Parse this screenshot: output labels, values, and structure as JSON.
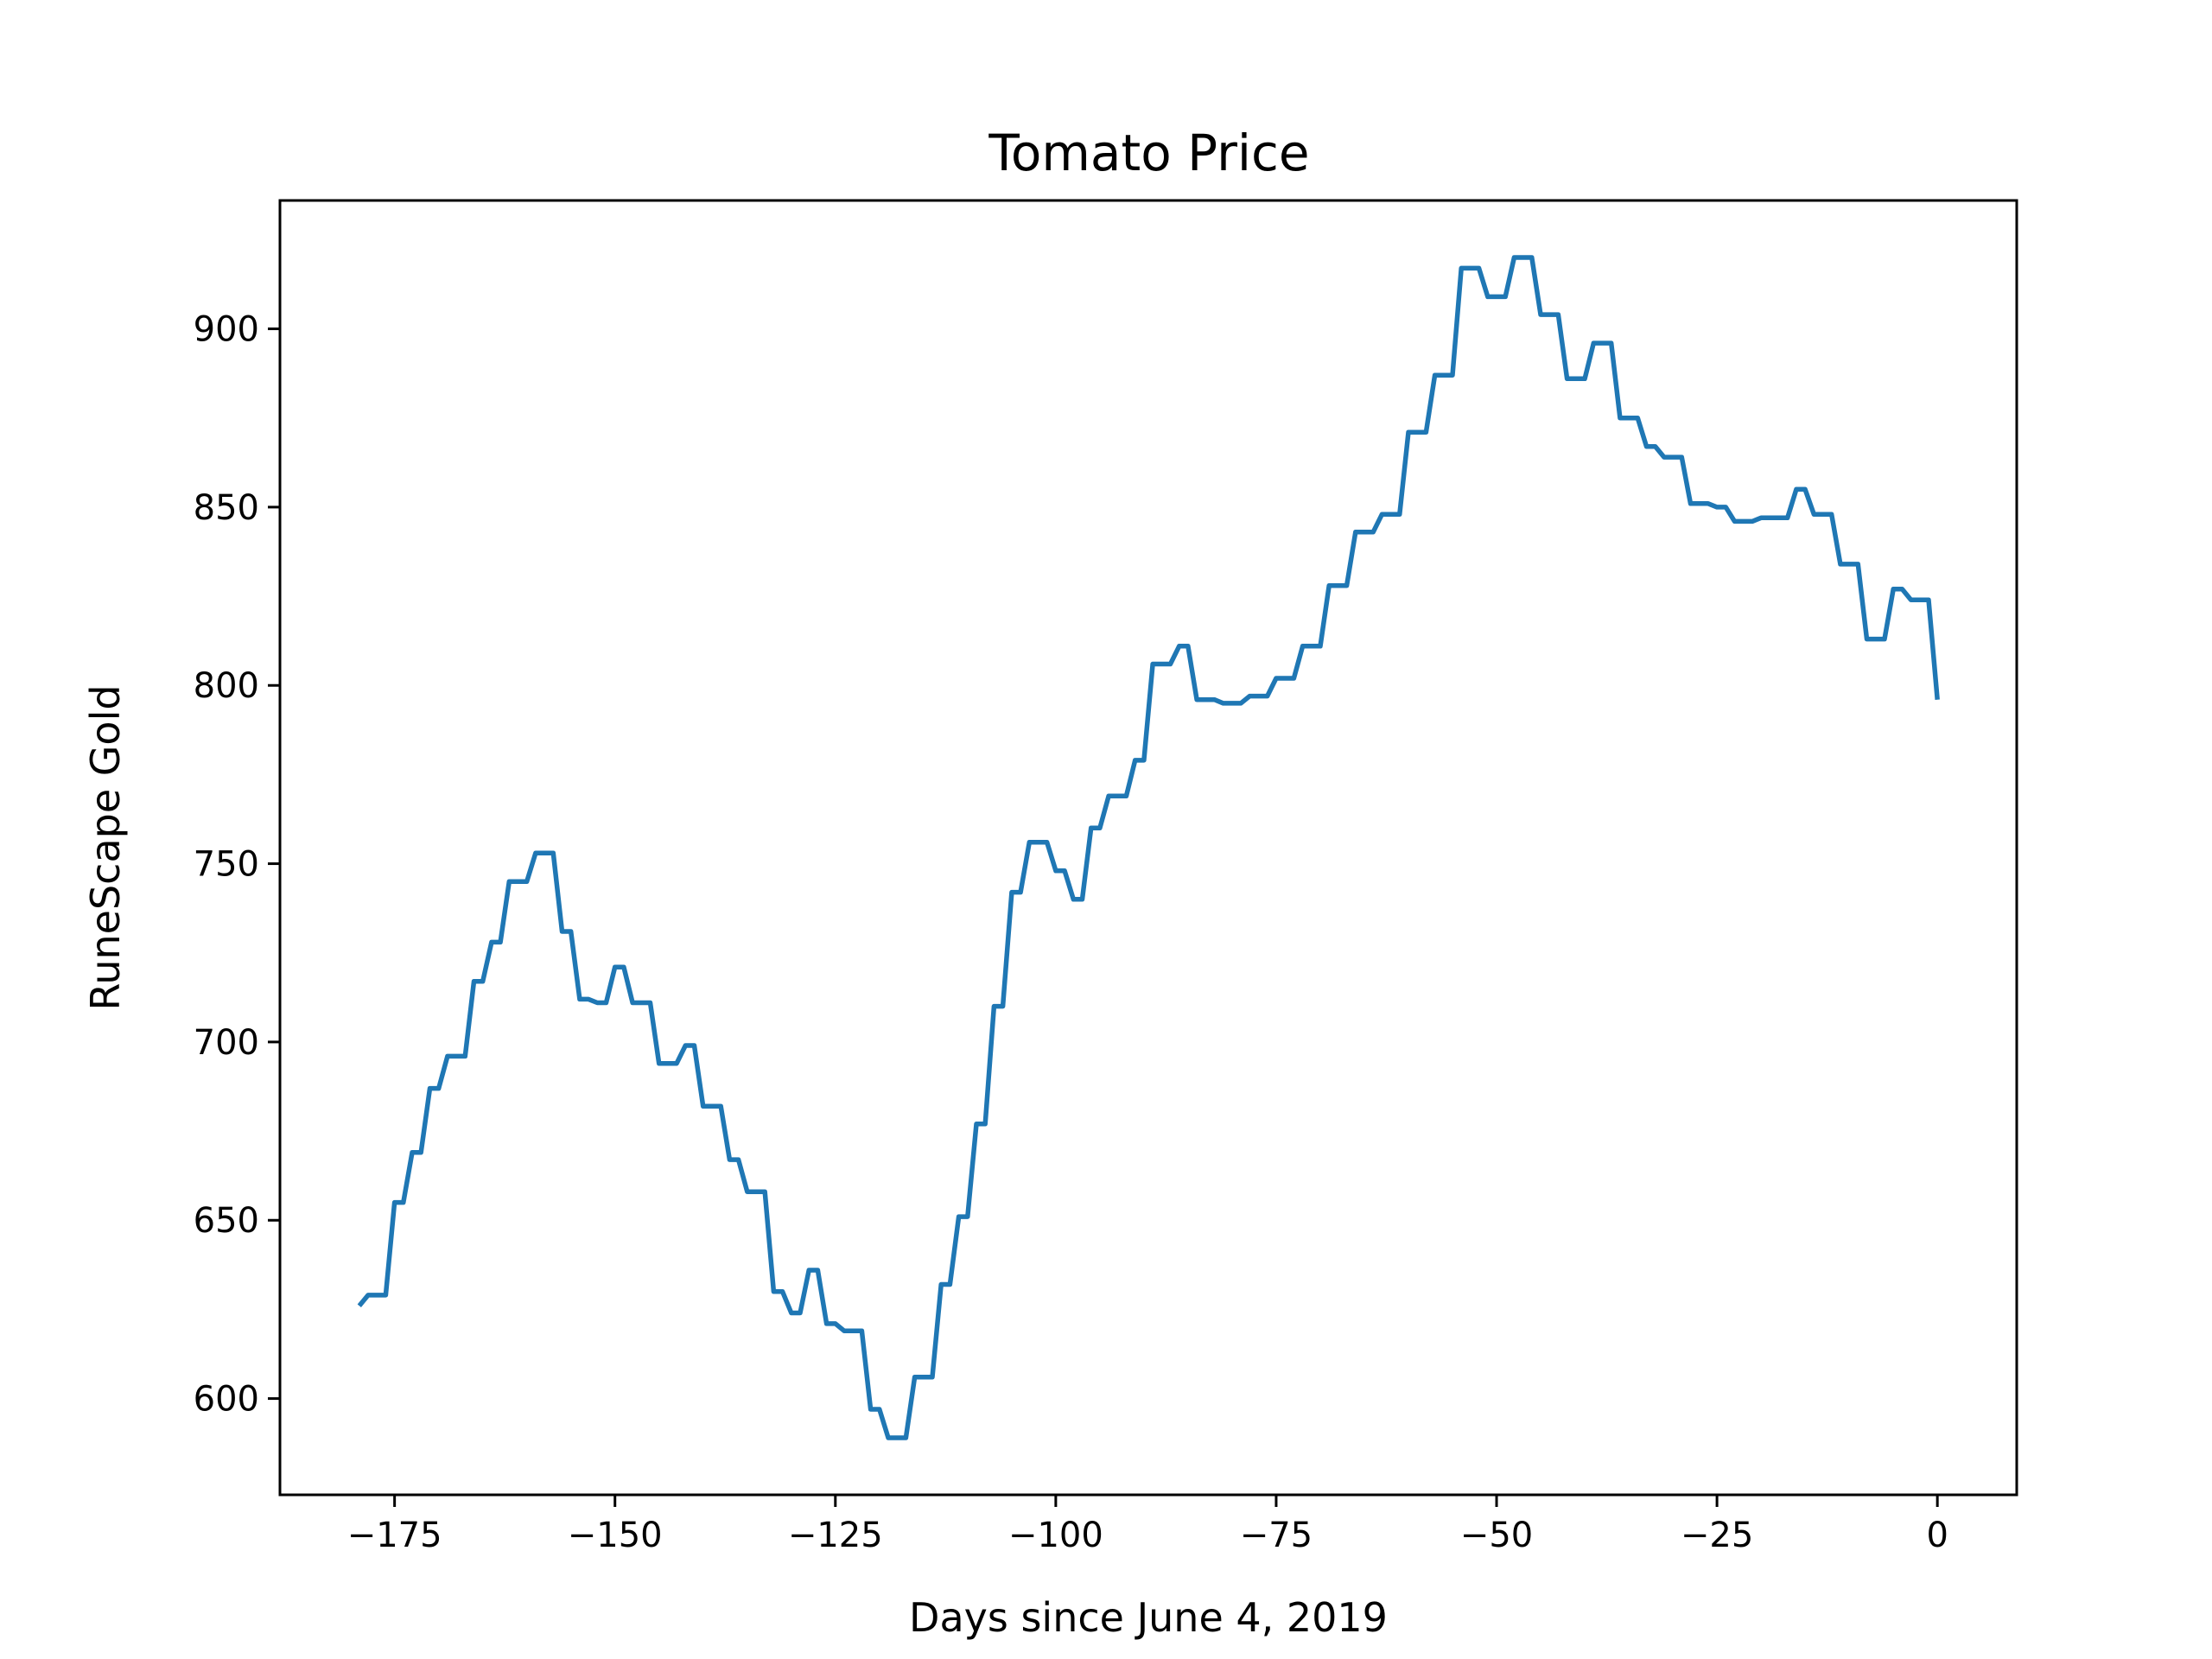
{
  "chart_data": {
    "type": "line",
    "title": "Tomato Price",
    "xlabel": "Days since June 4, 2019",
    "ylabel": "RuneScape Gold",
    "xlim": [
      -188,
      9
    ],
    "ylim": [
      573,
      936
    ],
    "x_ticks": [
      -175,
      -150,
      -125,
      -100,
      -75,
      -50,
      -25,
      0
    ],
    "x_tick_labels": [
      "−175",
      "−150",
      "−125",
      "−100",
      "−75",
      "−50",
      "−25",
      "0"
    ],
    "y_ticks": [
      600,
      650,
      700,
      750,
      800,
      850,
      900
    ],
    "y_tick_labels": [
      "600",
      "650",
      "700",
      "750",
      "800",
      "850",
      "900"
    ],
    "grid": false,
    "line_color": "#1f77b4",
    "series": [
      {
        "x": [
          -179,
          -178,
          -177,
          -176,
          -175,
          -174,
          -173,
          -172,
          -171,
          -170,
          -169,
          -168,
          -167,
          -166,
          -165,
          -164,
          -163,
          -162,
          -161,
          -160,
          -159,
          -158,
          -157,
          -156,
          -155,
          -154,
          -153,
          -152,
          -151,
          -150,
          -149,
          -148,
          -147,
          -146,
          -145,
          -144,
          -143,
          -142,
          -141,
          -140,
          -139,
          -138,
          -137,
          -136,
          -135,
          -134,
          -133,
          -132,
          -131,
          -130,
          -129,
          -128,
          -127,
          -126,
          -125,
          -124,
          -123,
          -122,
          -121,
          -120,
          -119,
          -118,
          -117,
          -116,
          -115,
          -114,
          -113,
          -112,
          -111,
          -110,
          -109,
          -108,
          -107,
          -106,
          -105,
          -104,
          -103,
          -102,
          -101,
          -100,
          -99,
          -98,
          -97,
          -96,
          -95,
          -94,
          -93,
          -92,
          -91,
          -90,
          -89,
          -88,
          -87,
          -86,
          -85,
          -84,
          -83,
          -82,
          -81,
          -80,
          -79,
          -78,
          -77,
          -76,
          -75,
          -74,
          -73,
          -72,
          -71,
          -70,
          -69,
          -68,
          -67,
          -66,
          -65,
          -64,
          -63,
          -62,
          -61,
          -60,
          -59,
          -58,
          -57,
          -56,
          -55,
          -54,
          -53,
          -52,
          -51,
          -50,
          -49,
          -48,
          -47,
          -46,
          -45,
          -44,
          -43,
          -42,
          -41,
          -40,
          -39,
          -38,
          -37,
          -36,
          -35,
          -34,
          -33,
          -32,
          -31,
          -30,
          -29,
          -28,
          -27,
          -26,
          -25,
          -24,
          -23,
          -22,
          -21,
          -20,
          -19,
          -18,
          -17,
          -16,
          -15,
          -14,
          -13,
          -12,
          -11,
          -10,
          -9,
          -8,
          -7,
          -6,
          -5,
          -4,
          -3,
          -2,
          -1,
          0
        ],
        "values": [
          626,
          629,
          629,
          629,
          655,
          655,
          669,
          669,
          687,
          687,
          696,
          696,
          696,
          717,
          717,
          728,
          728,
          745,
          745,
          745,
          753,
          753,
          753,
          731,
          731,
          712,
          712,
          711,
          711,
          721,
          721,
          711,
          711,
          711,
          694,
          694,
          694,
          699,
          699,
          682,
          682,
          682,
          667,
          667,
          658,
          658,
          658,
          630,
          630,
          624,
          624,
          636,
          636,
          621,
          621,
          619,
          619,
          619,
          597,
          597,
          589,
          589,
          589,
          606,
          606,
          606,
          632,
          632,
          651,
          651,
          677,
          677,
          710,
          710,
          742,
          742,
          756,
          756,
          756,
          748,
          748,
          740,
          740,
          760,
          760,
          769,
          769,
          769,
          779,
          779,
          806,
          806,
          806,
          811,
          811,
          796,
          796,
          796,
          795,
          795,
          795,
          797,
          797,
          797,
          802,
          802,
          802,
          811,
          811,
          811,
          828,
          828,
          828,
          843,
          843,
          843,
          848,
          848,
          848,
          871,
          871,
          871,
          887,
          887,
          887,
          917,
          917,
          917,
          909,
          909,
          909,
          920,
          920,
          920,
          904,
          904,
          904,
          886,
          886,
          886,
          896,
          896,
          896,
          875,
          875,
          875,
          867,
          867,
          864,
          864,
          864,
          851,
          851,
          851,
          850,
          850,
          846,
          846,
          846,
          847,
          847,
          847,
          847,
          855,
          855,
          848,
          848,
          848,
          834,
          834,
          834,
          813,
          813,
          813,
          827,
          827,
          824,
          824,
          824,
          796
        ]
      }
    ]
  }
}
